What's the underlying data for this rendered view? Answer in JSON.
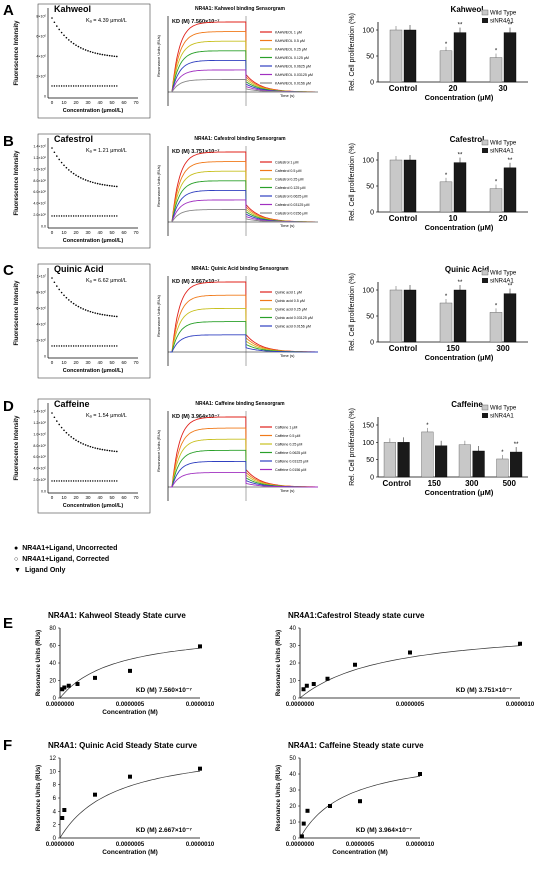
{
  "panels": [
    "A",
    "B",
    "C",
    "D",
    "E",
    "F"
  ],
  "rows": [
    {
      "letter": "A",
      "ligand": "Kahweol",
      "kd_fluor": "K",
      "kd_fluor_text": "Kₐ = 4.39 μmol/L",
      "fluor_ylabel": "Fluorescence Intensity",
      "fluor_xlabel": "Concentration (μmol/L)",
      "fluor_yticks": [
        "8×10⁶",
        "6×10⁶",
        "4×10⁶",
        "2×10⁶",
        "0"
      ],
      "fluor_xticks": [
        "0",
        "10",
        "20",
        "30",
        "40",
        "50",
        "60",
        "70"
      ],
      "spr_title": "NR4A1: Kahweol binding Sensorgram",
      "spr_kd": "KD (M) 7.560×10⁻⁷",
      "spr_ylabel": "Resonance Units (RUs)",
      "spr_xlabel": "Time (s)",
      "spr_legend": [
        "KAHWEOL 1 μM",
        "KAHWEOL 0.5 μM",
        "KAHWEOL 0.25 μM",
        "KAHWEOL 0.125 μM",
        "KAHWEOL 0.0625 μM",
        "KAHWEOL 0.03125 μM",
        "KAHWEOL 0.0156 μM"
      ],
      "bar_title": "Kahweol",
      "bar_categories": [
        "Control",
        "20",
        "30"
      ],
      "bar_wt": [
        100,
        60,
        47
      ],
      "bar_si": [
        100,
        95,
        95
      ],
      "bar_sig_wt": [
        "",
        "*",
        "*"
      ],
      "bar_sig_si": [
        "",
        "**",
        "**"
      ]
    },
    {
      "letter": "B",
      "ligand": "Cafestrol",
      "kd_fluor_text": "Kₐ = 1.21 μmol/L",
      "fluor_ylabel": "Fluorescence Intensity",
      "fluor_xlabel": "Concentration (μmol/L)",
      "fluor_yticks": [
        "1.4×10⁶",
        "1.2×10⁶",
        "1.0×10⁶",
        "8.0×10⁵",
        "6.0×10⁵",
        "4.0×10⁵",
        "2.0×10⁵",
        "0.0"
      ],
      "fluor_xticks": [
        "0",
        "10",
        "20",
        "30",
        "40",
        "50",
        "60",
        "70"
      ],
      "spr_title": "NR4A1: Cafestrol binding Sensorgram",
      "spr_kd": "KD (M) 3.751×10⁻⁷",
      "spr_ylabel": "Resonance Units (RUs)",
      "spr_xlabel": "Time (s)",
      "spr_legend": [
        "Cafestrol 1 μM",
        "Cafestrol 0.5 μM",
        "Cafestrol 0.25 μM",
        "Cafestrol 0.125 μM",
        "Cafestrol 0.0625 μM",
        "Cafestrol 0.03125 μM",
        "Cafestrol 0.0156 μM"
      ],
      "bar_title": "Cafestrol",
      "bar_categories": [
        "Control",
        "10",
        "20"
      ],
      "bar_wt": [
        100,
        58,
        45
      ],
      "bar_si": [
        100,
        95,
        85
      ],
      "bar_sig_wt": [
        "",
        "*",
        "*"
      ],
      "bar_sig_si": [
        "",
        "**",
        "**"
      ]
    },
    {
      "letter": "C",
      "ligand": "Quinic Acid",
      "kd_fluor_text": "Kₐ = 6.62 μmol/L",
      "fluor_ylabel": "Fluorescence Intensity",
      "fluor_xlabel": "Concentration (μmol/L)",
      "fluor_yticks": [
        "1×10⁷",
        "8×10⁶",
        "6×10⁶",
        "4×10⁶",
        "2×10⁶",
        "0"
      ],
      "fluor_xticks": [
        "0",
        "10",
        "20",
        "30",
        "40",
        "50",
        "60",
        "70"
      ],
      "spr_title": "NR4A1: Quinic Acid binding Sensorgram",
      "spr_kd": "KD (M) 2.667×10⁻⁷",
      "spr_ylabel": "Resonance Units (RUs)",
      "spr_xlabel": "Time (s)",
      "spr_legend": [
        "Quinic acid 1 μM",
        "Quinic acid 0.5 μM",
        "Quinic acid 0.25 μM",
        "Quinic acid 0.03125 μM",
        "Quinic acid 0.0156 μM"
      ],
      "bar_title": "Quinic Acid",
      "bar_categories": [
        "Control",
        "150",
        "300"
      ],
      "bar_wt": [
        100,
        75,
        57
      ],
      "bar_si": [
        100,
        100,
        93
      ],
      "bar_sig_wt": [
        "",
        "*",
        "*"
      ],
      "bar_sig_si": [
        "",
        "**",
        "**"
      ]
    },
    {
      "letter": "D",
      "ligand": "Caffeine",
      "kd_fluor_text": "Kₐ = 1.54 μmol/L",
      "fluor_ylabel": "Fluorescence Intensity",
      "fluor_xlabel": "Concentration (μmol/L)",
      "fluor_yticks": [
        "1.4×10⁶",
        "1.2×10⁶",
        "1.0×10⁶",
        "8.0×10⁵",
        "6.0×10⁵",
        "4.0×10⁵",
        "2.0×10⁵",
        "0.0"
      ],
      "fluor_xticks": [
        "0",
        "10",
        "20",
        "30",
        "40",
        "50",
        "60",
        "70"
      ],
      "spr_title": "NR4A1: Caffeine binding Sensorgram",
      "spr_kd": "KD (M) 3.964×10⁻⁷",
      "spr_ylabel": "Resonance Units (RUs)",
      "spr_xlabel": "Time (s)",
      "spr_legend": [
        "Caffeine 1 μM",
        "Caffeine 0.5 μM",
        "Caffeine 0.25 μM",
        "Caffeine 0.0625 μM",
        "Caffeine 0.03125 μM",
        "Caffeine 0.0156 μM"
      ],
      "bar_title": "Caffeine",
      "bar_categories": [
        "Control",
        "150",
        "300",
        "500"
      ],
      "bar_wt": [
        100,
        130,
        93,
        52
      ],
      "bar_si": [
        100,
        90,
        75,
        72
      ],
      "bar_sig_wt": [
        "",
        "*",
        "",
        "*"
      ],
      "bar_sig_si": [
        "",
        "",
        "",
        "**"
      ]
    }
  ],
  "bar_common": {
    "ylabel": "Rel. Cell proliferation (%)",
    "xlabel": "Concentration (μM)",
    "yticks": [
      "0",
      "50",
      "100",
      "150"
    ],
    "legend_wt": "Wild Type",
    "legend_si": "siNR4A1"
  },
  "fluor_legend": [
    "NR4A1+Ligand, Uncorrected",
    "NR4A1+Ligand, Corrected",
    "Ligand Only"
  ],
  "steady": [
    {
      "letter": "E",
      "title": "NR4A1: Kahweol Steady  State curve",
      "kd": "KD (M) 7.560×10⁻⁷",
      "ylabel": "Resonance Units (RUs)",
      "xlabel": "Concentration (M)",
      "yticks": [
        "0",
        "20",
        "40",
        "60",
        "80"
      ],
      "xticks": [
        "0.0000000",
        "0.0000005",
        "0.0000010"
      ],
      "ymax": 80,
      "x": [
        1.6e-08,
        3.1e-08,
        6.25e-08,
        1.25e-07,
        2.5e-07,
        5e-07,
        1e-06
      ],
      "y": [
        10,
        12,
        14,
        16,
        23,
        31,
        59
      ]
    },
    {
      "letter": "",
      "title": "NR4A1:Cafestrol  Steady state curve",
      "kd": "KD (M) 3.751×10⁻⁷",
      "ylabel": "Resonance Units (RUs)",
      "xlabel": "",
      "yticks": [
        "0",
        "10",
        "20",
        "30",
        "40"
      ],
      "xticks": [
        "0.0000000",
        "0.0000005",
        "0.0000010"
      ],
      "ymax": 40,
      "x": [
        1.6e-08,
        3.1e-08,
        6.25e-08,
        1.25e-07,
        2.5e-07,
        5e-07,
        1e-06
      ],
      "y": [
        5,
        7,
        8,
        11,
        19,
        26,
        31
      ]
    },
    {
      "letter": "F",
      "title": "NR4A1: Quinic Acid Steady State curve",
      "kd": "KD (M) 2.667×10⁻⁷",
      "ylabel": "Resonance Units (RUs)",
      "xlabel": "Concentration (M)",
      "yticks": [
        "0",
        "2",
        "4",
        "6",
        "8",
        "10",
        "12"
      ],
      "xticks": [
        "0.0000000",
        "0.0000005",
        "0.0000010"
      ],
      "ymax": 12,
      "x": [
        1.6e-08,
        3.1e-08,
        2.5e-07,
        5e-07,
        1e-06
      ],
      "y": [
        3,
        4.2,
        6.5,
        9.2,
        10.4
      ]
    },
    {
      "letter": "",
      "title": "NR4A1: Caffeine Steady state curve",
      "kd": "KD (M) 3.964×10⁻⁷",
      "ylabel": "Resonance Units (RUs)",
      "xlabel": "Concentration (M)",
      "yticks": [
        "0",
        "10",
        "20",
        "30",
        "40",
        "50"
      ],
      "xticks": [
        "0.0000000",
        "0.0000005",
        "0.0000010"
      ],
      "ymax": 50,
      "x": [
        1.6e-08,
        3.1e-08,
        6.25e-08,
        2.5e-07,
        5e-07,
        1e-06
      ],
      "y": [
        1,
        9,
        17,
        20,
        23,
        40
      ]
    }
  ],
  "spr_colors": [
    "#e0201a",
    "#f07a1a",
    "#c8c020",
    "#2aa02a",
    "#3040c0",
    "#a030c0",
    "#888888"
  ],
  "colors": {
    "wt": "#c8c8c8",
    "si": "#1a1a1a"
  }
}
